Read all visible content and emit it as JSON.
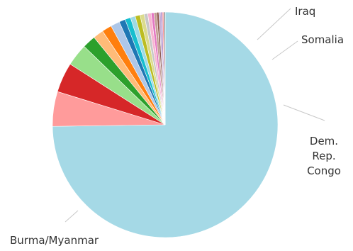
{
  "chart_data": {
    "type": "pie",
    "title": "",
    "slices": [
      {
        "label": "Burma/Myanmar",
        "value": 75.0,
        "color": "#a5d9e6"
      },
      {
        "label": "Dem. Rep. Congo",
        "value": 5.0,
        "color": "#ff9b9b"
      },
      {
        "label": "",
        "value": 4.3,
        "color": "#d62728"
      },
      {
        "label": "Somalia",
        "value": 3.2,
        "color": "#98df8a"
      },
      {
        "label": "",
        "value": 1.9,
        "color": "#2ca02c"
      },
      {
        "label": "",
        "value": 1.5,
        "color": "#ffbb78"
      },
      {
        "label": "",
        "value": 1.4,
        "color": "#ff7f0e"
      },
      {
        "label": "Iraq",
        "value": 1.3,
        "color": "#aec7e8"
      },
      {
        "label": "",
        "value": 0.9,
        "color": "#1f77b4"
      },
      {
        "label": "",
        "value": 0.8,
        "color": "#17becf"
      },
      {
        "label": "",
        "value": 0.7,
        "color": "#9edae5"
      },
      {
        "label": "",
        "value": 0.7,
        "color": "#bcbd22"
      },
      {
        "label": "",
        "value": 0.6,
        "color": "#dbdb8d"
      },
      {
        "label": "",
        "value": 0.5,
        "color": "#c7c7c7"
      },
      {
        "label": "",
        "value": 0.5,
        "color": "#f7b6d2"
      },
      {
        "label": "",
        "value": 0.4,
        "color": "#e377c2"
      },
      {
        "label": "",
        "value": 0.4,
        "color": "#c49c94"
      },
      {
        "label": "",
        "value": 0.3,
        "color": "#8c564b"
      },
      {
        "label": "",
        "value": 0.3,
        "color": "#c5b0d5"
      },
      {
        "label": "",
        "value": 0.2,
        "color": "#9467bd"
      },
      {
        "label": "",
        "value": 0.2,
        "color": "#ff9896"
      },
      {
        "label": "",
        "value": 0.2,
        "color": "#7f7f7f"
      }
    ],
    "labels": {
      "iraq": "Iraq",
      "somalia": "Somalia",
      "drc_line1": "Dem.",
      "drc_line2": "Rep.",
      "drc_line3": "Congo",
      "burma": "Burma/Myanmar"
    }
  }
}
